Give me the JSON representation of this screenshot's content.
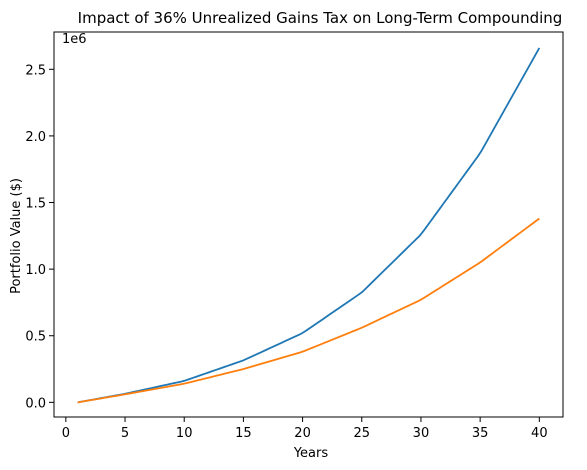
{
  "chart_data": {
    "type": "line",
    "title": "Impact of 36% Unrealized Gains Tax on Long-Term Compounding",
    "xlabel": "Years",
    "ylabel": "Portfolio Value ($)",
    "y_offset_label": "1e6",
    "xlim": [
      -1,
      42
    ],
    "ylim": [
      -0.11,
      2.78
    ],
    "x_ticks": [
      0,
      5,
      10,
      15,
      20,
      25,
      30,
      35,
      40
    ],
    "y_ticks": [
      0.0,
      0.5,
      1.0,
      1.5,
      2.0,
      2.5
    ],
    "x_tick_labels": [
      "0",
      "5",
      "10",
      "15",
      "20",
      "25",
      "30",
      "35",
      "40"
    ],
    "y_tick_labels": [
      "0.0",
      "0.5",
      "1.0",
      "1.5",
      "2.0",
      "2.5"
    ],
    "grid": false,
    "legend": "none",
    "series": [
      {
        "color": "#1f77b4",
        "x": [
          1,
          5,
          10,
          15,
          20,
          25,
          30,
          35,
          40
        ],
        "y": [
          0.0,
          0.064,
          0.161,
          0.315,
          0.52,
          0.825,
          1.26,
          1.87,
          2.66
        ]
      },
      {
        "color": "#ff7f0e",
        "x": [
          1,
          5,
          10,
          15,
          20,
          25,
          30,
          35,
          40
        ],
        "y": [
          0.0,
          0.06,
          0.14,
          0.25,
          0.38,
          0.56,
          0.77,
          1.05,
          1.38
        ]
      }
    ]
  }
}
